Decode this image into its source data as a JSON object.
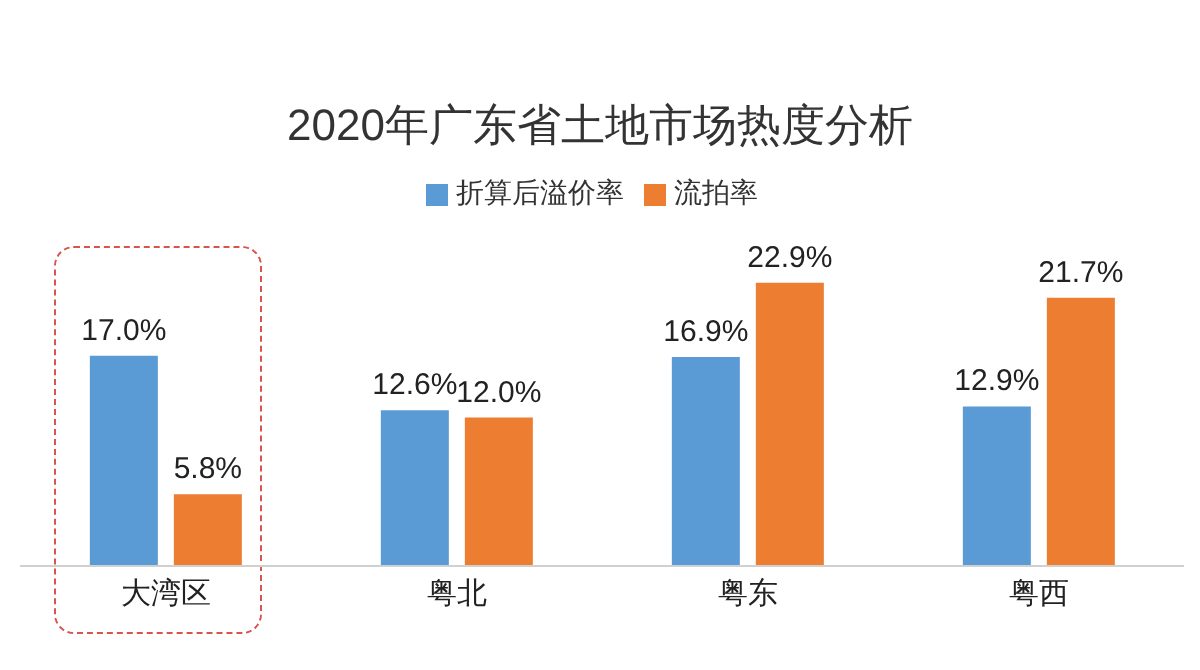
{
  "chart_data": {
    "type": "bar",
    "title": "2020年广东省土地市场热度分析",
    "categories": [
      "大湾区",
      "粤北",
      "粤东",
      "粤西"
    ],
    "series": [
      {
        "name": "折算后溢价率",
        "color": "#5b9bd5",
        "values": [
          17.0,
          12.6,
          16.9,
          12.9
        ],
        "value_labels": [
          "17.0%",
          "12.6%",
          "16.9%",
          "12.9%"
        ]
      },
      {
        "name": "流拍率",
        "color": "#ed7d31",
        "values": [
          5.8,
          12.0,
          22.9,
          21.7
        ],
        "value_labels": [
          "5.8%",
          "12.0%",
          "22.9%",
          "21.7%"
        ]
      }
    ],
    "legend": "top",
    "grid": false
  }
}
